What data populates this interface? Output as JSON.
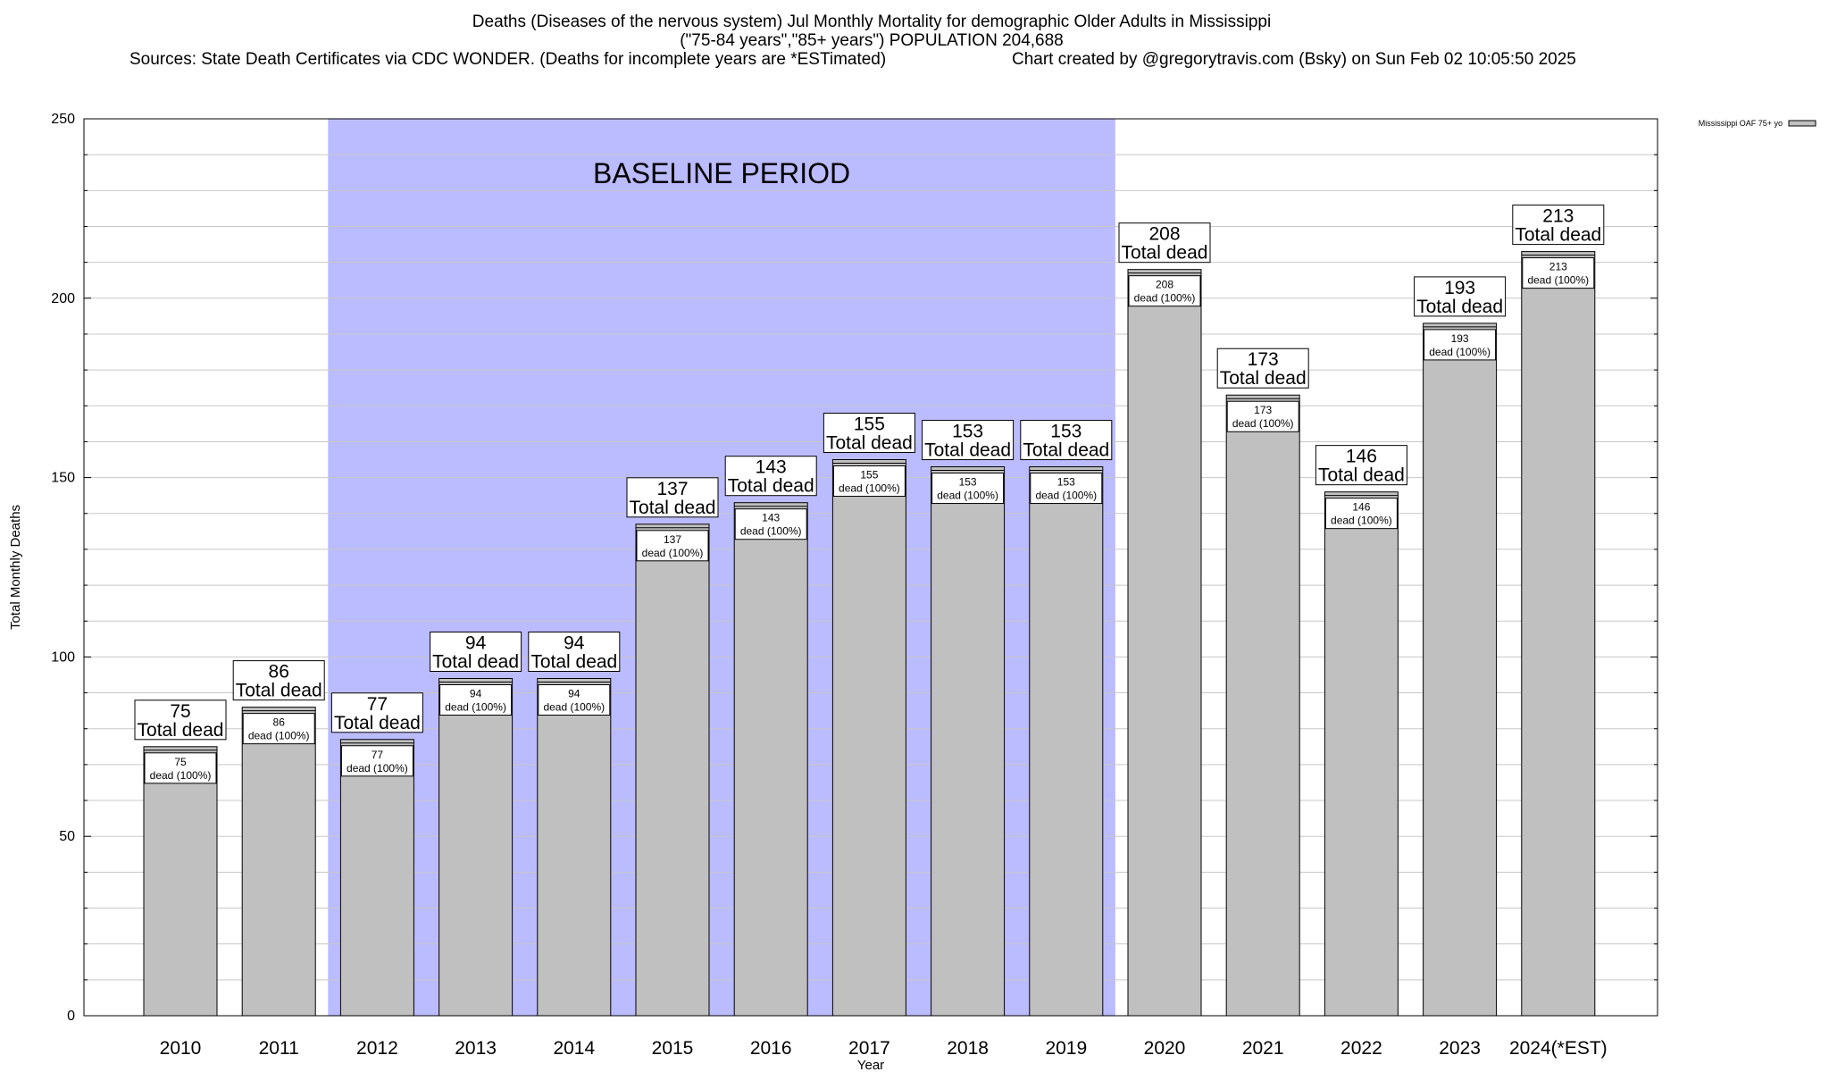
{
  "title": {
    "line1": "Deaths (Diseases of the nervous system) Jul Monthly Mortality for demographic Older Adults in Mississippi",
    "line2": "(\"75-84 years\",\"85+ years\") POPULATION 204,688",
    "line3_left": "Sources: State Death Certificates via CDC WONDER. (Deaths for incomplete years are *ESTimated)",
    "line3_right": "Chart created by @gregorytravis.com (Bsky) on Sun Feb 02 10:05:50 2025"
  },
  "colors": {
    "bar_fill": "#c0c0c0",
    "baseline_shade": "#bbbbff",
    "grid": "#c8c8c8",
    "axis": "#000000",
    "background": "#ffffff"
  },
  "chart_data": {
    "type": "bar",
    "xlabel": "Year",
    "ylabel": "Total Monthly Deaths",
    "ylim": [
      0,
      250
    ],
    "yticks": [
      0,
      50,
      100,
      150,
      200,
      250
    ],
    "grid": true,
    "legend_position": "top-right",
    "baseline": {
      "label": "BASELINE PERIOD",
      "from_category": "2012",
      "to_category": "2019"
    },
    "categories": [
      "2010",
      "2011",
      "2012",
      "2013",
      "2014",
      "2015",
      "2016",
      "2017",
      "2018",
      "2019",
      "2020",
      "2021",
      "2022",
      "2023",
      "2024(*EST)"
    ],
    "series": [
      {
        "name": "Mississippi OAF 75+ yo",
        "values": [
          75,
          86,
          77,
          94,
          94,
          137,
          143,
          155,
          153,
          153,
          208,
          173,
          146,
          193,
          213
        ]
      }
    ],
    "total_label_text": "Total dead",
    "inner_label_text": "dead (100%)"
  }
}
